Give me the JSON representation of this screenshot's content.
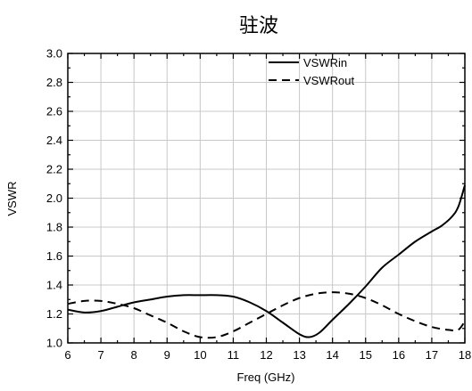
{
  "chart_data": {
    "type": "line",
    "title": "驻波",
    "xlabel": "Freq (GHz)",
    "ylabel": "VSWR",
    "xlim": [
      6,
      18
    ],
    "ylim": [
      1.0,
      3.0
    ],
    "x_ticks": [
      "6",
      "7",
      "8",
      "9",
      "10",
      "11",
      "12",
      "13",
      "14",
      "15",
      "16",
      "17",
      "18"
    ],
    "y_ticks": [
      "1.0",
      "1.2",
      "1.4",
      "1.6",
      "1.8",
      "2.0",
      "2.2",
      "2.4",
      "2.6",
      "2.8",
      "3.0"
    ],
    "grid": true,
    "legend": "top-right",
    "series": [
      {
        "name": "VSWRin",
        "style": "solid",
        "color": "#000000",
        "x": [
          6.0,
          6.5,
          7.0,
          7.5,
          8.0,
          8.5,
          9.0,
          9.5,
          10.0,
          10.5,
          11.0,
          11.5,
          12.0,
          12.5,
          13.0,
          13.3,
          13.6,
          14.0,
          14.5,
          15.0,
          15.5,
          16.0,
          16.5,
          17.0,
          17.3,
          17.6,
          17.8,
          18.0
        ],
        "y": [
          1.23,
          1.21,
          1.22,
          1.25,
          1.28,
          1.3,
          1.32,
          1.33,
          1.33,
          1.33,
          1.32,
          1.28,
          1.22,
          1.14,
          1.06,
          1.04,
          1.07,
          1.16,
          1.27,
          1.39,
          1.52,
          1.61,
          1.7,
          1.77,
          1.81,
          1.87,
          1.94,
          2.09
        ]
      },
      {
        "name": "VSWRout",
        "style": "dashed",
        "color": "#000000",
        "x": [
          6.0,
          6.5,
          7.0,
          7.5,
          8.0,
          8.5,
          9.0,
          9.5,
          10.0,
          10.5,
          11.0,
          11.5,
          12.0,
          12.5,
          13.0,
          13.5,
          14.0,
          14.5,
          15.0,
          15.5,
          16.0,
          16.5,
          17.0,
          17.5,
          17.8,
          18.0
        ],
        "y": [
          1.27,
          1.29,
          1.29,
          1.27,
          1.24,
          1.19,
          1.14,
          1.08,
          1.04,
          1.04,
          1.08,
          1.14,
          1.2,
          1.26,
          1.31,
          1.34,
          1.35,
          1.34,
          1.31,
          1.26,
          1.2,
          1.15,
          1.11,
          1.09,
          1.09,
          1.15
        ]
      }
    ]
  }
}
